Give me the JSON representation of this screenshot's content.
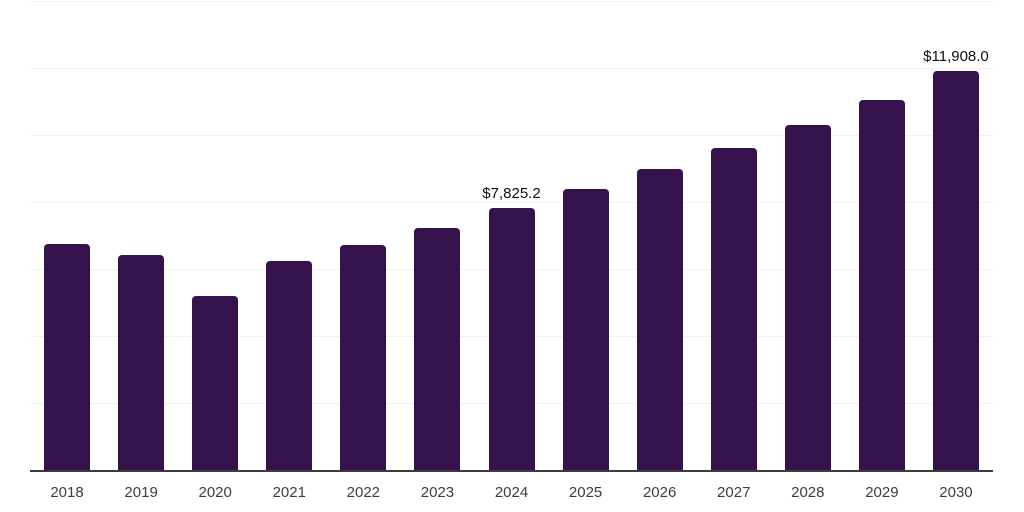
{
  "chart_data": {
    "type": "bar",
    "title": "",
    "xlabel": "",
    "ylabel": "",
    "categories": [
      "2018",
      "2019",
      "2020",
      "2021",
      "2022",
      "2023",
      "2024",
      "2025",
      "2026",
      "2027",
      "2028",
      "2029",
      "2030"
    ],
    "values": [
      6750,
      6410,
      5190,
      6250,
      6710,
      7220,
      7825.2,
      8390,
      8985,
      9610,
      10300,
      11040,
      11908
    ],
    "data_labels": [
      {
        "category": "2024",
        "text": "$7,825.2"
      },
      {
        "category": "2030",
        "text": "$11,908.0"
      }
    ],
    "ylim": [
      0,
      14000
    ],
    "gridline_step": 2000,
    "grid": true,
    "legend_position": "none"
  },
  "colors": {
    "background": "#ffffff",
    "bar": "#36124d",
    "gridline": "#f1f1f1",
    "axis": "#3c3c3c",
    "tick_label": "#3d3d3d",
    "data_label": "#101010"
  }
}
